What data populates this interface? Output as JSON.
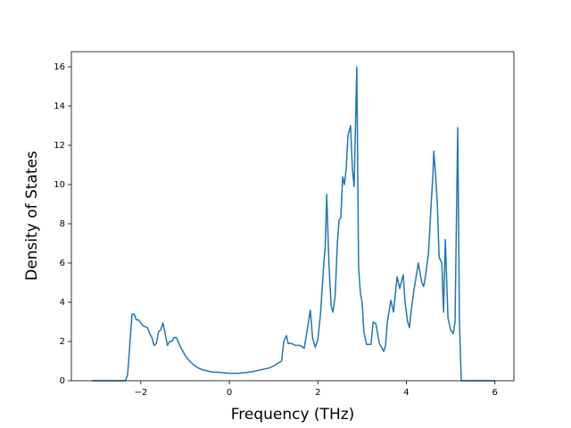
{
  "chart_data": {
    "type": "line",
    "xlabel": "Frequency (THz)",
    "ylabel": "Density of States",
    "x": [
      -3.1,
      -2.5,
      -2.35,
      -2.3,
      -2.25,
      -2.2,
      -2.15,
      -2.1,
      -2.05,
      -1.95,
      -1.85,
      -1.8,
      -1.75,
      -1.7,
      -1.65,
      -1.6,
      -1.55,
      -1.5,
      -1.45,
      -1.4,
      -1.35,
      -1.3,
      -1.25,
      -1.2,
      -1.1,
      -1.0,
      -0.9,
      -0.8,
      -0.7,
      -0.6,
      -0.5,
      -0.4,
      -0.2,
      0.0,
      0.2,
      0.4,
      0.6,
      0.8,
      0.9,
      1.0,
      1.1,
      1.18,
      1.23,
      1.29,
      1.33,
      1.4,
      1.5,
      1.6,
      1.69,
      1.76,
      1.83,
      1.88,
      1.94,
      2.0,
      2.06,
      2.12,
      2.17,
      2.2,
      2.25,
      2.3,
      2.34,
      2.39,
      2.44,
      2.48,
      2.52,
      2.56,
      2.6,
      2.64,
      2.68,
      2.74,
      2.78,
      2.82,
      2.88,
      2.92,
      2.96,
      3.0,
      3.04,
      3.1,
      3.2,
      3.25,
      3.31,
      3.39,
      3.49,
      3.53,
      3.57,
      3.65,
      3.71,
      3.79,
      3.85,
      3.93,
      3.97,
      4.03,
      4.07,
      4.11,
      4.17,
      4.27,
      4.35,
      4.39,
      4.43,
      4.5,
      4.56,
      4.6,
      4.62,
      4.66,
      4.7,
      4.74,
      4.8,
      4.84,
      4.88,
      4.94,
      5.0,
      5.06,
      5.1,
      5.16,
      5.2,
      5.24,
      6.0
    ],
    "values": [
      0,
      0,
      0,
      0.3,
      1.8,
      3.4,
      3.4,
      3.1,
      3.1,
      2.8,
      2.7,
      2.4,
      2.2,
      1.8,
      1.9,
      2.5,
      2.6,
      2.95,
      2.4,
      1.8,
      2.0,
      2.0,
      2.2,
      2.2,
      1.7,
      1.3,
      1.0,
      0.8,
      0.65,
      0.55,
      0.5,
      0.45,
      0.42,
      0.38,
      0.38,
      0.42,
      0.5,
      0.6,
      0.65,
      0.75,
      0.9,
      1.0,
      2.0,
      2.3,
      1.9,
      1.9,
      1.8,
      1.8,
      1.65,
      2.6,
      3.6,
      2.2,
      1.7,
      2.1,
      3.4,
      5.5,
      7.0,
      9.5,
      6.0,
      3.8,
      3.5,
      4.3,
      7.0,
      8.2,
      8.3,
      10.4,
      10.0,
      10.8,
      12.5,
      13.0,
      10.8,
      9.9,
      16.0,
      5.8,
      4.5,
      4.0,
      2.5,
      1.85,
      1.85,
      3.0,
      2.9,
      1.9,
      1.5,
      1.8,
      3.0,
      4.1,
      3.5,
      5.3,
      4.7,
      5.4,
      4.0,
      3.0,
      2.7,
      3.6,
      4.6,
      6.0,
      5.0,
      4.8,
      5.3,
      6.5,
      9.0,
      10.5,
      11.7,
      10.5,
      9.0,
      6.3,
      6.0,
      3.5,
      7.2,
      3.2,
      2.6,
      2.4,
      3.0,
      12.9,
      3.0,
      0,
      0
    ],
    "color": "#1f77b4",
    "xlim": [
      -3.57,
      6.43
    ],
    "ylim": [
      0,
      16.77
    ],
    "xticks": [
      {
        "value": -2,
        "label": "−2"
      },
      0,
      2,
      4,
      6
    ],
    "yticks": [
      0,
      2,
      4,
      6,
      8,
      10,
      12,
      14,
      16
    ]
  }
}
